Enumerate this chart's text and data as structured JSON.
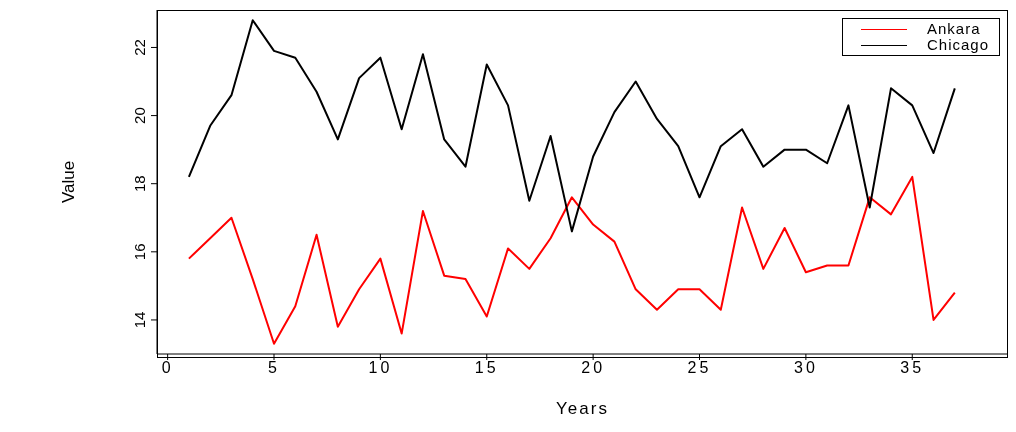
{
  "chart_data": {
    "type": "line",
    "xlabel": "Years",
    "ylabel": "Value",
    "legend": "top right",
    "x": [
      1,
      2,
      3,
      4,
      5,
      6,
      7,
      8,
      9,
      10,
      11,
      12,
      13,
      14,
      15,
      16,
      17,
      18,
      19,
      20,
      21,
      22,
      23,
      24,
      25,
      26,
      27,
      28,
      29,
      30,
      31,
      32,
      33,
      34,
      35,
      36,
      37
    ],
    "xlim": [
      -0.5,
      39.5
    ],
    "xticks": [
      0,
      5,
      10,
      15,
      20,
      25,
      30,
      35
    ],
    "ylim": [
      13,
      23.1
    ],
    "yticks": [
      14,
      16,
      18,
      20,
      22
    ],
    "series": [
      {
        "name": "Ankara",
        "color": "#ff0000",
        "values": [
          15.8,
          16.4,
          17.0,
          15.2,
          13.3,
          14.4,
          16.5,
          13.8,
          14.9,
          15.8,
          13.6,
          17.2,
          15.3,
          15.2,
          14.1,
          16.1,
          15.5,
          16.4,
          17.6,
          16.8,
          16.3,
          14.9,
          14.3,
          14.9,
          14.9,
          14.3,
          17.3,
          15.5,
          16.7,
          15.4,
          15.6,
          15.6,
          17.6,
          17.1,
          18.2,
          14.0,
          14.8
        ]
      },
      {
        "name": "Chicago",
        "color": "#000000",
        "values": [
          18.2,
          19.7,
          20.6,
          22.8,
          21.9,
          21.7,
          20.7,
          19.3,
          21.1,
          21.7,
          19.6,
          21.8,
          19.3,
          18.5,
          21.5,
          20.3,
          17.5,
          19.4,
          16.6,
          18.8,
          20.1,
          21.0,
          19.9,
          19.1,
          17.6,
          19.1,
          19.6,
          18.5,
          19.0,
          19.0,
          18.6,
          20.3,
          17.3,
          20.8,
          20.3,
          18.9,
          20.8
        ]
      }
    ]
  }
}
